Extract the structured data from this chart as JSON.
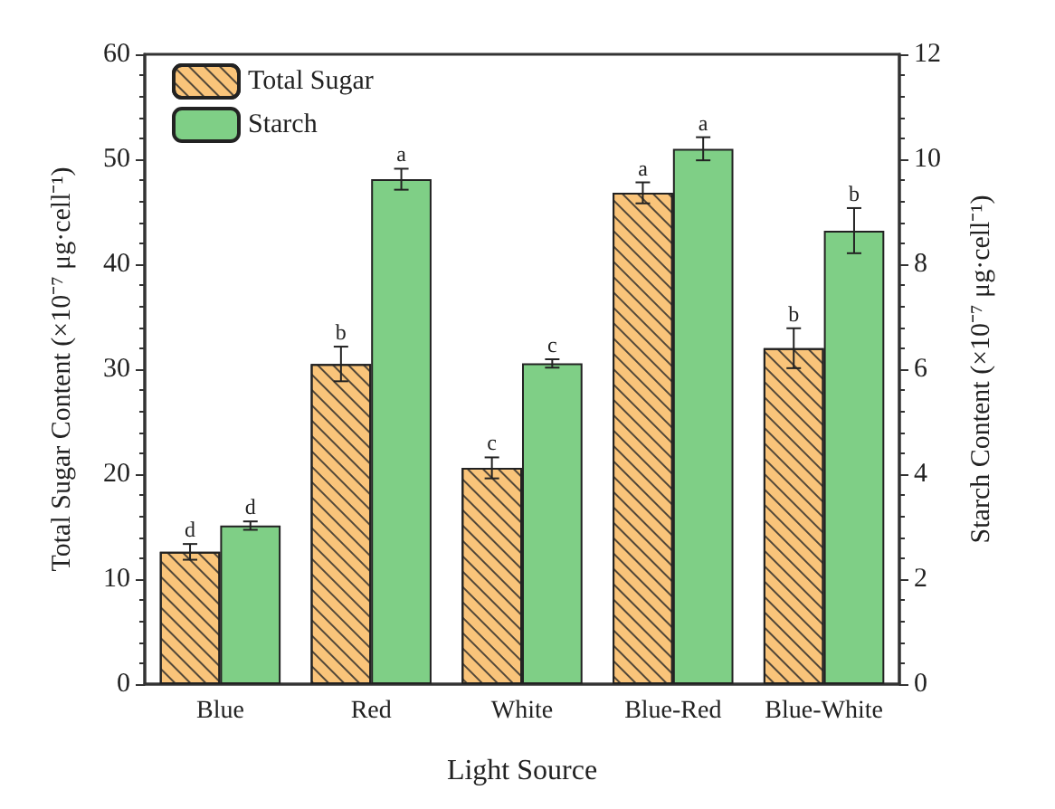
{
  "chart_data": {
    "type": "bar",
    "xlabel": "Light Source",
    "ylabel": "Total Sugar Content (×10⁻⁷ μg·cell⁻¹)",
    "y2label": "Starch Content (×10⁻⁷ μg·cell⁻¹)",
    "categories": [
      "Blue",
      "Red",
      "White",
      "Blue-Red",
      "Blue-White"
    ],
    "series": [
      {
        "name": "Total Sugar",
        "color": "#f9c47a",
        "values": [
          12.6,
          30.5,
          20.6,
          46.8,
          32.0
        ],
        "errors": [
          0.75,
          1.65,
          1.0,
          1.0,
          1.9
        ],
        "value_labels": [
          "d",
          "b",
          "c",
          "a",
          "b"
        ]
      },
      {
        "name": "Starch",
        "color": "#7fcf86",
        "axis": "y2",
        "values": [
          3.02,
          9.62,
          6.11,
          10.2,
          8.64
        ],
        "errors": [
          0.08,
          0.2,
          0.08,
          0.22,
          0.43
        ],
        "value_labels": [
          "d",
          "a",
          "c",
          "a",
          "b"
        ]
      }
    ],
    "ylim": [
      0,
      60
    ],
    "yticks": [
      0,
      10,
      20,
      30,
      40,
      50,
      60
    ],
    "y2lim": [
      0,
      12
    ],
    "y2ticks": [
      0,
      2,
      4,
      6,
      8,
      10,
      12
    ],
    "grid": false,
    "legend": "top left"
  }
}
